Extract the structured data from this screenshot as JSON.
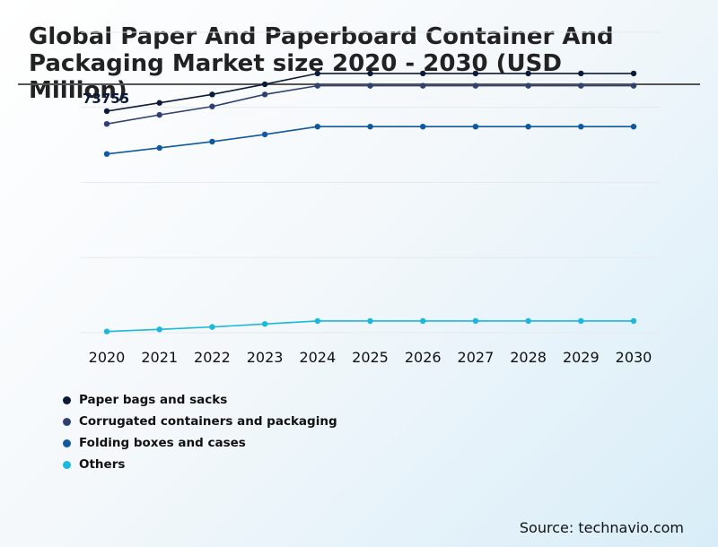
{
  "title": "Global Paper And Paperboard Container And Packaging Market size 2020 - 2030 (USD Million)",
  "source": "Source: technavio.com",
  "chart_data": {
    "type": "line",
    "title": "Global Paper And Paperboard Container And Packaging Market size 2020 - 2030 (USD Million)",
    "xlabel": "",
    "ylabel": "",
    "x": [
      "2020",
      "2021",
      "2022",
      "2023",
      "2024",
      "2025",
      "2026",
      "2027",
      "2028",
      "2029",
      "2030"
    ],
    "ylim": [
      0,
      100000
    ],
    "grid": true,
    "legend_position": "bottom-left",
    "annotations": [
      {
        "text": "73755",
        "series": 0,
        "x": "2020"
      }
    ],
    "series": [
      {
        "name": "Paper bags and sacks",
        "color": "#0c1b3a",
        "values": [
          73755,
          76500,
          79300,
          82700,
          86300,
          86300,
          86300,
          86300,
          86300,
          86300,
          86300
        ]
      },
      {
        "name": "Corrugated containers and packaging",
        "color": "#2e4170",
        "values": [
          69500,
          72500,
          75300,
          79300,
          82200,
          82200,
          82200,
          82200,
          82200,
          82200,
          82200
        ]
      },
      {
        "name": "Folding boxes and cases",
        "color": "#11599e",
        "values": [
          59500,
          61500,
          63600,
          66000,
          68600,
          68600,
          68600,
          68600,
          68600,
          68600,
          68600
        ]
      },
      {
        "name": "Others",
        "color": "#19b8dc",
        "values": [
          400,
          1100,
          1900,
          2900,
          3900,
          3900,
          3900,
          3900,
          3900,
          3900,
          3900
        ]
      }
    ]
  }
}
